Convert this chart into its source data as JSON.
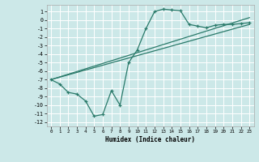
{
  "xlabel": "Humidex (Indice chaleur)",
  "bg_color": "#cce8e8",
  "grid_color": "#ffffff",
  "line_color": "#2a7a6a",
  "xlim": [
    -0.5,
    23.5
  ],
  "ylim": [
    -12.5,
    1.8
  ],
  "xticks": [
    0,
    1,
    2,
    3,
    4,
    5,
    6,
    7,
    8,
    9,
    10,
    11,
    12,
    13,
    14,
    15,
    16,
    17,
    18,
    19,
    20,
    21,
    22,
    23
  ],
  "yticks": [
    1,
    0,
    -1,
    -2,
    -3,
    -4,
    -5,
    -6,
    -7,
    -8,
    -9,
    -10,
    -11,
    -12
  ],
  "curve1_x": [
    0,
    1,
    2,
    3,
    4,
    5,
    6,
    7,
    8,
    9,
    10,
    11,
    12,
    13,
    14,
    15,
    16,
    17,
    18,
    19,
    20,
    21,
    22,
    23
  ],
  "curve1_y": [
    -7.0,
    -7.5,
    -8.5,
    -8.7,
    -9.5,
    -11.3,
    -11.1,
    -8.3,
    -10.0,
    -5.0,
    -3.5,
    -1.0,
    1.0,
    1.3,
    1.2,
    1.1,
    -0.5,
    -0.7,
    -0.9,
    -0.6,
    -0.5,
    -0.5,
    -0.4,
    -0.3
  ],
  "curve2_x": [
    0,
    23
  ],
  "curve2_y": [
    -7.0,
    -0.5
  ],
  "curve3_x": [
    0,
    23
  ],
  "curve3_y": [
    -7.0,
    0.3
  ]
}
